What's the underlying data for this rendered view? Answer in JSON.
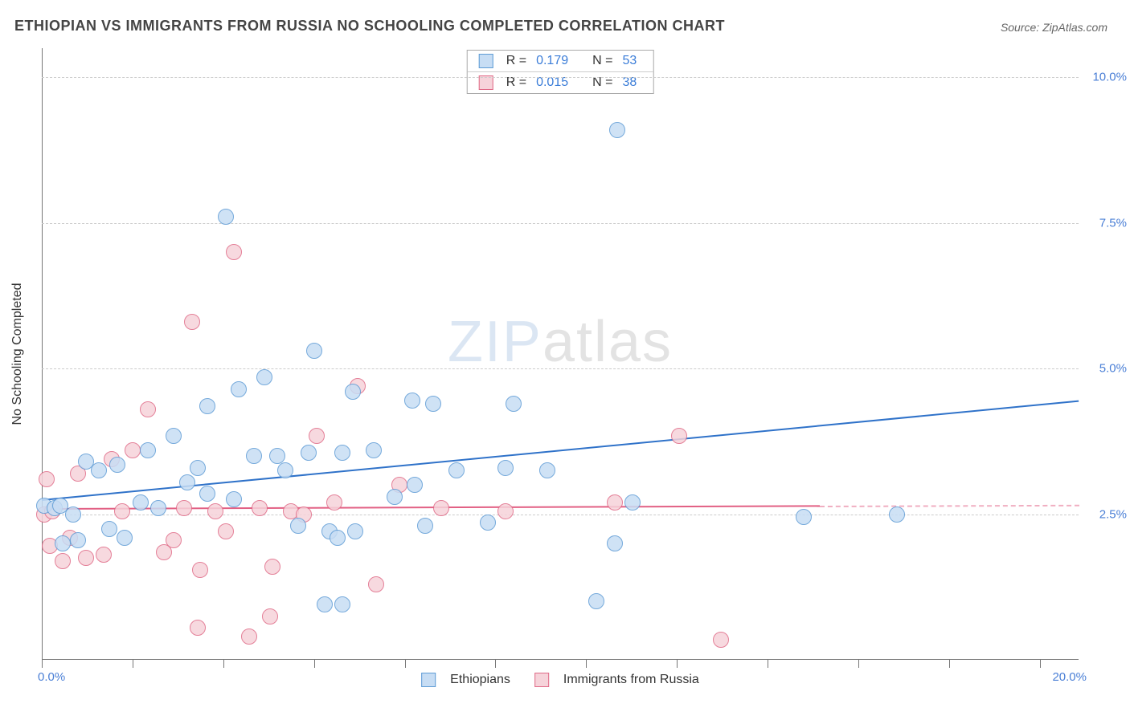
{
  "title": "ETHIOPIAN VS IMMIGRANTS FROM RUSSIA NO SCHOOLING COMPLETED CORRELATION CHART",
  "source": "Source: ZipAtlas.com",
  "y_axis_title": "No Schooling Completed",
  "watermark": {
    "z": "ZIP",
    "a": "atlas",
    "color_z": "#b9cfe9",
    "color_a": "#c9c9c9"
  },
  "chart": {
    "type": "scatter",
    "xlim": [
      0,
      20
    ],
    "ylim": [
      0,
      10.5
    ],
    "x_tick_positions": [
      0,
      1.75,
      3.5,
      5.25,
      7.0,
      8.75,
      10.5,
      12.25,
      14.0,
      15.75,
      17.5,
      19.25
    ],
    "x_label_start": "0.0%",
    "x_label_end": "20.0%",
    "y_gridlines": [
      {
        "value": 2.5,
        "label": "2.5%"
      },
      {
        "value": 5.0,
        "label": "5.0%"
      },
      {
        "value": 7.5,
        "label": "7.5%"
      },
      {
        "value": 10.0,
        "label": "10.0%"
      }
    ],
    "grid_color": "#cccccc",
    "background_color": "#ffffff",
    "marker_radius": 10,
    "marker_stroke_width": 1.4
  },
  "stats_box": {
    "rows": [
      {
        "series": "s1",
        "r_label": "R",
        "r_value": "0.179",
        "n_label": "N",
        "n_value": "53"
      },
      {
        "series": "s2",
        "r_label": "R",
        "r_value": "0.015",
        "n_label": "N",
        "n_value": "38"
      }
    ],
    "label_color": "#333333",
    "value_color": "#3b7dd8"
  },
  "legend": {
    "items": [
      {
        "series": "s1",
        "label": "Ethiopians"
      },
      {
        "series": "s2",
        "label": "Immigrants from Russia"
      }
    ]
  },
  "series": {
    "s1": {
      "name": "Ethiopians",
      "fill": "#c7ddf4",
      "stroke": "#5d9bd5",
      "line_color": "#2f72c9",
      "trend": {
        "x0": 0,
        "y0": 2.75,
        "x1": 20,
        "y1": 4.45,
        "dash_beyond_x": 20
      },
      "points": [
        [
          0.05,
          2.65
        ],
        [
          0.25,
          2.6
        ],
        [
          0.35,
          2.65
        ],
        [
          0.4,
          2.0
        ],
        [
          0.7,
          2.05
        ],
        [
          0.6,
          2.5
        ],
        [
          0.85,
          3.4
        ],
        [
          1.1,
          3.25
        ],
        [
          1.3,
          2.25
        ],
        [
          1.45,
          3.35
        ],
        [
          1.6,
          2.1
        ],
        [
          1.9,
          2.7
        ],
        [
          2.05,
          3.6
        ],
        [
          2.25,
          2.6
        ],
        [
          2.55,
          3.85
        ],
        [
          2.8,
          3.05
        ],
        [
          3.0,
          3.3
        ],
        [
          3.2,
          4.35
        ],
        [
          3.2,
          2.85
        ],
        [
          3.55,
          7.6
        ],
        [
          3.7,
          2.75
        ],
        [
          3.8,
          4.65
        ],
        [
          4.1,
          3.5
        ],
        [
          4.3,
          4.85
        ],
        [
          4.55,
          3.5
        ],
        [
          4.7,
          3.25
        ],
        [
          4.95,
          2.3
        ],
        [
          5.15,
          3.55
        ],
        [
          5.25,
          5.3
        ],
        [
          5.45,
          0.95
        ],
        [
          5.55,
          2.2
        ],
        [
          5.7,
          2.1
        ],
        [
          5.8,
          3.55
        ],
        [
          5.8,
          0.95
        ],
        [
          6.0,
          4.6
        ],
        [
          6.05,
          2.2
        ],
        [
          6.4,
          3.6
        ],
        [
          6.8,
          2.8
        ],
        [
          7.15,
          4.45
        ],
        [
          7.2,
          3.0
        ],
        [
          7.4,
          2.3
        ],
        [
          7.55,
          4.4
        ],
        [
          8.0,
          3.25
        ],
        [
          8.6,
          2.35
        ],
        [
          8.95,
          3.3
        ],
        [
          9.1,
          4.4
        ],
        [
          9.75,
          3.25
        ],
        [
          10.7,
          1.0
        ],
        [
          11.05,
          2.0
        ],
        [
          11.1,
          9.1
        ],
        [
          11.4,
          2.7
        ],
        [
          14.7,
          2.45
        ],
        [
          16.5,
          2.5
        ]
      ]
    },
    "s2": {
      "name": "Immigrants from Russia",
      "fill": "#f6d3da",
      "stroke": "#e06a87",
      "line_color": "#e26084",
      "trend": {
        "x0": 0,
        "y0": 2.6,
        "x1": 15.0,
        "y1": 2.65,
        "dash_beyond_x": 15.0,
        "dash_to_x": 20
      },
      "points": [
        [
          0.05,
          2.5
        ],
        [
          0.1,
          3.1
        ],
        [
          0.15,
          1.95
        ],
        [
          0.2,
          2.55
        ],
        [
          0.4,
          1.7
        ],
        [
          0.55,
          2.1
        ],
        [
          0.7,
          3.2
        ],
        [
          0.85,
          1.75
        ],
        [
          1.2,
          1.8
        ],
        [
          1.35,
          3.45
        ],
        [
          1.55,
          2.55
        ],
        [
          1.75,
          3.6
        ],
        [
          2.05,
          4.3
        ],
        [
          2.35,
          1.85
        ],
        [
          2.55,
          2.05
        ],
        [
          2.75,
          2.6
        ],
        [
          2.9,
          5.8
        ],
        [
          3.0,
          0.55
        ],
        [
          3.05,
          1.55
        ],
        [
          3.35,
          2.55
        ],
        [
          3.55,
          2.2
        ],
        [
          3.7,
          7.0
        ],
        [
          4.0,
          0.4
        ],
        [
          4.2,
          2.6
        ],
        [
          4.4,
          0.75
        ],
        [
          4.45,
          1.6
        ],
        [
          4.8,
          2.55
        ],
        [
          5.05,
          2.5
        ],
        [
          5.3,
          3.85
        ],
        [
          5.65,
          2.7
        ],
        [
          6.1,
          4.7
        ],
        [
          6.45,
          1.3
        ],
        [
          6.9,
          3.0
        ],
        [
          7.7,
          2.6
        ],
        [
          8.95,
          2.55
        ],
        [
          11.05,
          2.7
        ],
        [
          12.3,
          3.85
        ],
        [
          13.1,
          0.35
        ]
      ]
    }
  }
}
